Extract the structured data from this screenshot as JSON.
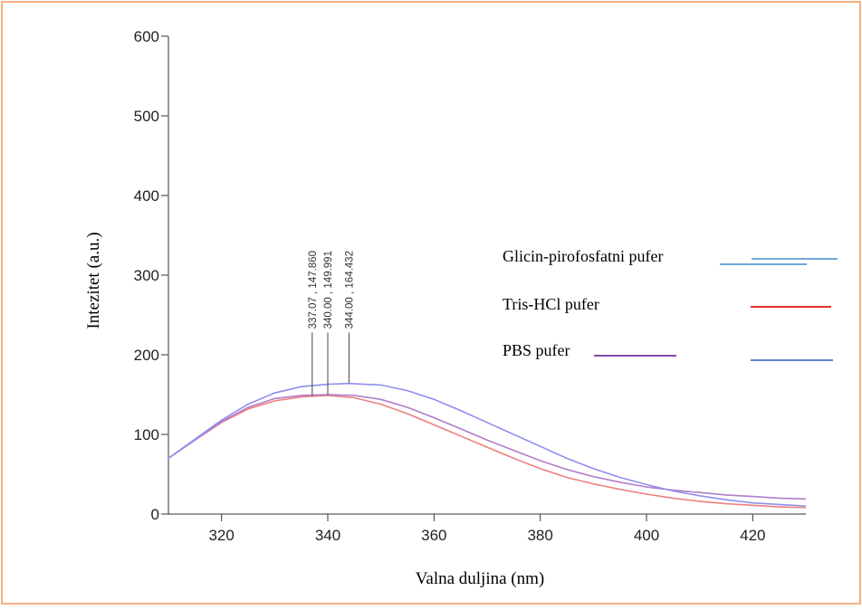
{
  "chart_data": {
    "type": "line",
    "title": "",
    "xlabel": "Valna duljina (nm)",
    "ylabel": "Intezitet (a.u.)",
    "xlim": [
      310,
      430
    ],
    "ylim": [
      0,
      600
    ],
    "x_ticks": [
      320,
      340,
      360,
      380,
      400,
      420
    ],
    "y_ticks": [
      0,
      100,
      200,
      300,
      400,
      500,
      600
    ],
    "grid": false,
    "legend_position": "right",
    "series": [
      {
        "name": "Glicin-pirofosfatni pufer",
        "color": "#ef7f7f",
        "x": [
          310,
          315,
          320,
          325,
          330,
          335,
          337,
          340,
          345,
          350,
          355,
          360,
          365,
          370,
          375,
          380,
          385,
          390,
          395,
          400,
          405,
          410,
          415,
          420,
          425,
          430
        ],
        "y": [
          70,
          93,
          115,
          132,
          142,
          147,
          148,
          149,
          146,
          138,
          126,
          112,
          98,
          84,
          70,
          57,
          46,
          38,
          31,
          25,
          20,
          16,
          13,
          11,
          9,
          8
        ]
      },
      {
        "name": "Tris-HCl pufer",
        "color": "#b07dc9",
        "x": [
          310,
          315,
          320,
          325,
          330,
          335,
          340,
          345,
          350,
          355,
          360,
          365,
          370,
          375,
          380,
          385,
          390,
          395,
          400,
          405,
          410,
          415,
          420,
          425,
          430
        ],
        "y": [
          70,
          93,
          116,
          134,
          145,
          149,
          150,
          149,
          144,
          134,
          121,
          107,
          93,
          80,
          67,
          56,
          47,
          40,
          34,
          30,
          27,
          24,
          22,
          20,
          19
        ]
      },
      {
        "name": "PBS pufer",
        "color": "#8f8fef",
        "x": [
          310,
          315,
          320,
          325,
          330,
          335,
          340,
          344,
          350,
          355,
          360,
          365,
          370,
          375,
          380,
          385,
          390,
          395,
          400,
          405,
          410,
          415,
          420,
          425,
          430
        ],
        "y": [
          70,
          94,
          118,
          138,
          152,
          160,
          163,
          164,
          162,
          155,
          144,
          130,
          115,
          100,
          85,
          70,
          57,
          46,
          37,
          29,
          23,
          18,
          14,
          12,
          10
        ]
      }
    ],
    "peaks": [
      {
        "x": 337.07,
        "y": 147.86,
        "label": "337.07 , 147.860"
      },
      {
        "x": 340.0,
        "y": 149.991,
        "label": "340.00 , 149.991"
      },
      {
        "x": 344.0,
        "y": 164.432,
        "label": "344.00 , 164.432"
      }
    ],
    "legend": [
      {
        "label": "Glicin-pirofosfatni pufer",
        "swatch_colors": [
          "#5b9bd5",
          "#5b9bd5"
        ]
      },
      {
        "label": "Tris-HCl pufer",
        "swatch_colors": [
          "#e01010"
        ]
      },
      {
        "label": "PBS pufer",
        "swatch_colors": [
          "#7030a0",
          "#4472c4"
        ]
      }
    ],
    "frame_color": "#f4b183",
    "axis_color": "#333333"
  }
}
